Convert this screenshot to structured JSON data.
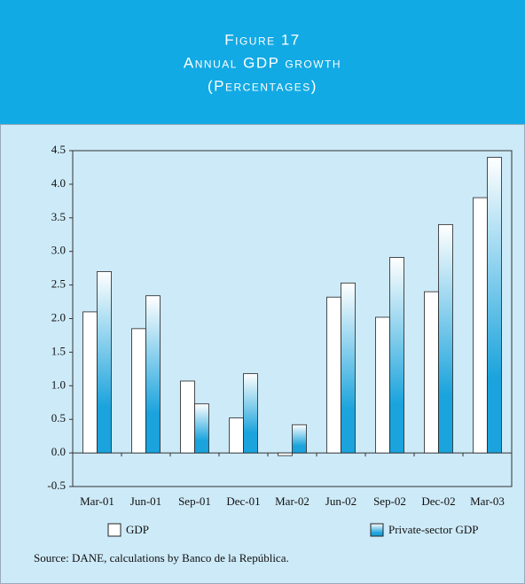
{
  "chart_data": {
    "type": "bar",
    "title": "Figure 17",
    "subtitle": "Annual GDP growth",
    "unit_note": "(Percentages)",
    "source": "Source: DANE, calculations by Banco de la República.",
    "categories": [
      "Mar-01",
      "Jun-01",
      "Sep-01",
      "Dec-01",
      "Mar-02",
      "Jun-02",
      "Sep-02",
      "Dec-02",
      "Mar-03"
    ],
    "series": [
      {
        "name": "GDP",
        "color": "#ffffff",
        "values": [
          2.1,
          1.85,
          1.07,
          0.52,
          -0.04,
          2.32,
          2.02,
          2.4,
          3.8
        ]
      },
      {
        "name": "Private-sector GDP",
        "color": "#1aa3dc",
        "values": [
          2.7,
          2.34,
          0.73,
          1.18,
          0.42,
          2.53,
          2.91,
          3.4,
          4.4
        ]
      }
    ],
    "ylim": [
      -0.5,
      4.5
    ],
    "yticks": [
      -0.5,
      {
        "value": 0,
        "label": "0.0"
      },
      0.5,
      {
        "value": 1,
        "label": "1.0"
      },
      1.5,
      {
        "value": 2,
        "label": "2.0"
      },
      2.5,
      {
        "value": 3,
        "label": "3.0"
      },
      3.5,
      {
        "value": 4,
        "label": "4.0"
      },
      4.5
    ]
  }
}
